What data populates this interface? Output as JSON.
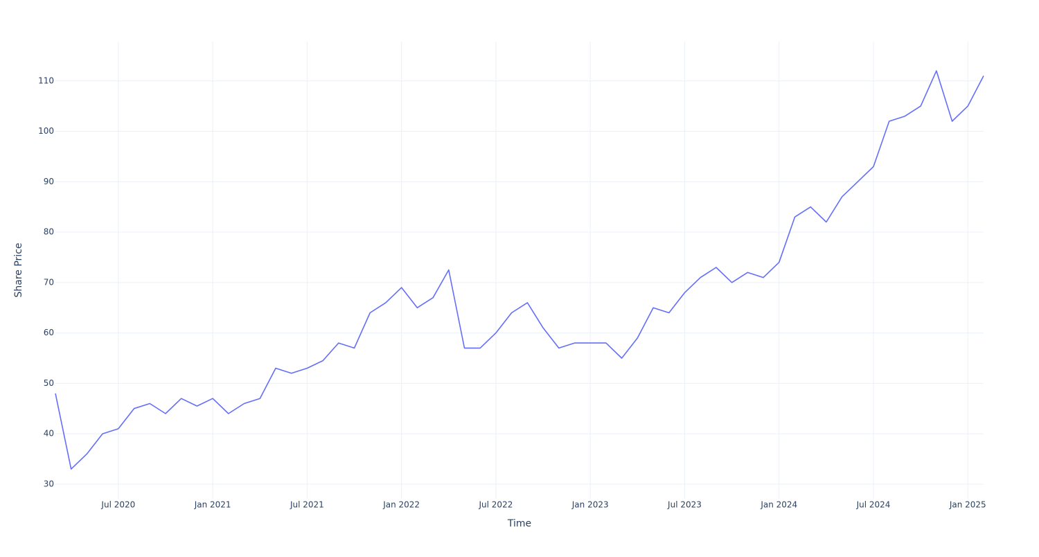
{
  "chart_data": {
    "type": "line",
    "x_label": "Time",
    "y_label": "Share Price",
    "x": [
      "2020-03",
      "2020-04",
      "2020-05",
      "2020-06",
      "2020-07",
      "2020-08",
      "2020-09",
      "2020-10",
      "2020-11",
      "2020-12",
      "2021-01",
      "2021-02",
      "2021-03",
      "2021-04",
      "2021-05",
      "2021-06",
      "2021-07",
      "2021-08",
      "2021-09",
      "2021-10",
      "2021-11",
      "2021-12",
      "2022-01",
      "2022-02",
      "2022-03",
      "2022-04",
      "2022-05",
      "2022-06",
      "2022-07",
      "2022-08",
      "2022-09",
      "2022-10",
      "2022-11",
      "2022-12",
      "2023-01",
      "2023-02",
      "2023-03",
      "2023-04",
      "2023-05",
      "2023-06",
      "2023-07",
      "2023-08",
      "2023-09",
      "2023-10",
      "2023-11",
      "2023-12",
      "2024-01",
      "2024-02",
      "2024-03",
      "2024-04",
      "2024-05",
      "2024-06",
      "2024-07",
      "2024-08",
      "2024-09",
      "2024-10",
      "2024-11",
      "2024-12",
      "2025-01",
      "2025-02"
    ],
    "values": [
      48,
      33,
      36,
      40,
      41,
      45,
      46,
      44,
      47,
      45.5,
      47,
      44,
      46,
      47,
      53,
      52,
      53,
      54.5,
      58,
      57,
      64,
      66,
      69,
      65,
      67,
      72.5,
      57,
      57,
      60,
      64,
      66,
      61,
      57,
      58,
      58,
      58,
      55,
      59,
      65,
      64,
      68,
      71,
      73,
      70,
      72,
      71,
      74,
      83,
      85,
      82,
      87,
      90,
      93,
      102,
      103,
      105,
      112,
      102,
      105,
      111
    ],
    "color": "#636efa",
    "xlim": [
      "2020-03",
      "2025-02"
    ],
    "xticks": [
      {
        "value": "2020-07",
        "label": "Jul 2020"
      },
      {
        "value": "2021-01",
        "label": "Jan 2021"
      },
      {
        "value": "2021-07",
        "label": "Jul 2021"
      },
      {
        "value": "2022-01",
        "label": "Jan 2022"
      },
      {
        "value": "2022-07",
        "label": "Jul 2022"
      },
      {
        "value": "2023-01",
        "label": "Jan 2023"
      },
      {
        "value": "2023-07",
        "label": "Jul 2023"
      },
      {
        "value": "2024-01",
        "label": "Jan 2024"
      },
      {
        "value": "2024-07",
        "label": "Jul 2024"
      },
      {
        "value": "2025-01",
        "label": "Jan 2025"
      }
    ],
    "ylim": [
      27.1,
      117.8
    ],
    "yticks": [
      30,
      40,
      50,
      60,
      70,
      80,
      90,
      100,
      110
    ],
    "grid": true
  }
}
